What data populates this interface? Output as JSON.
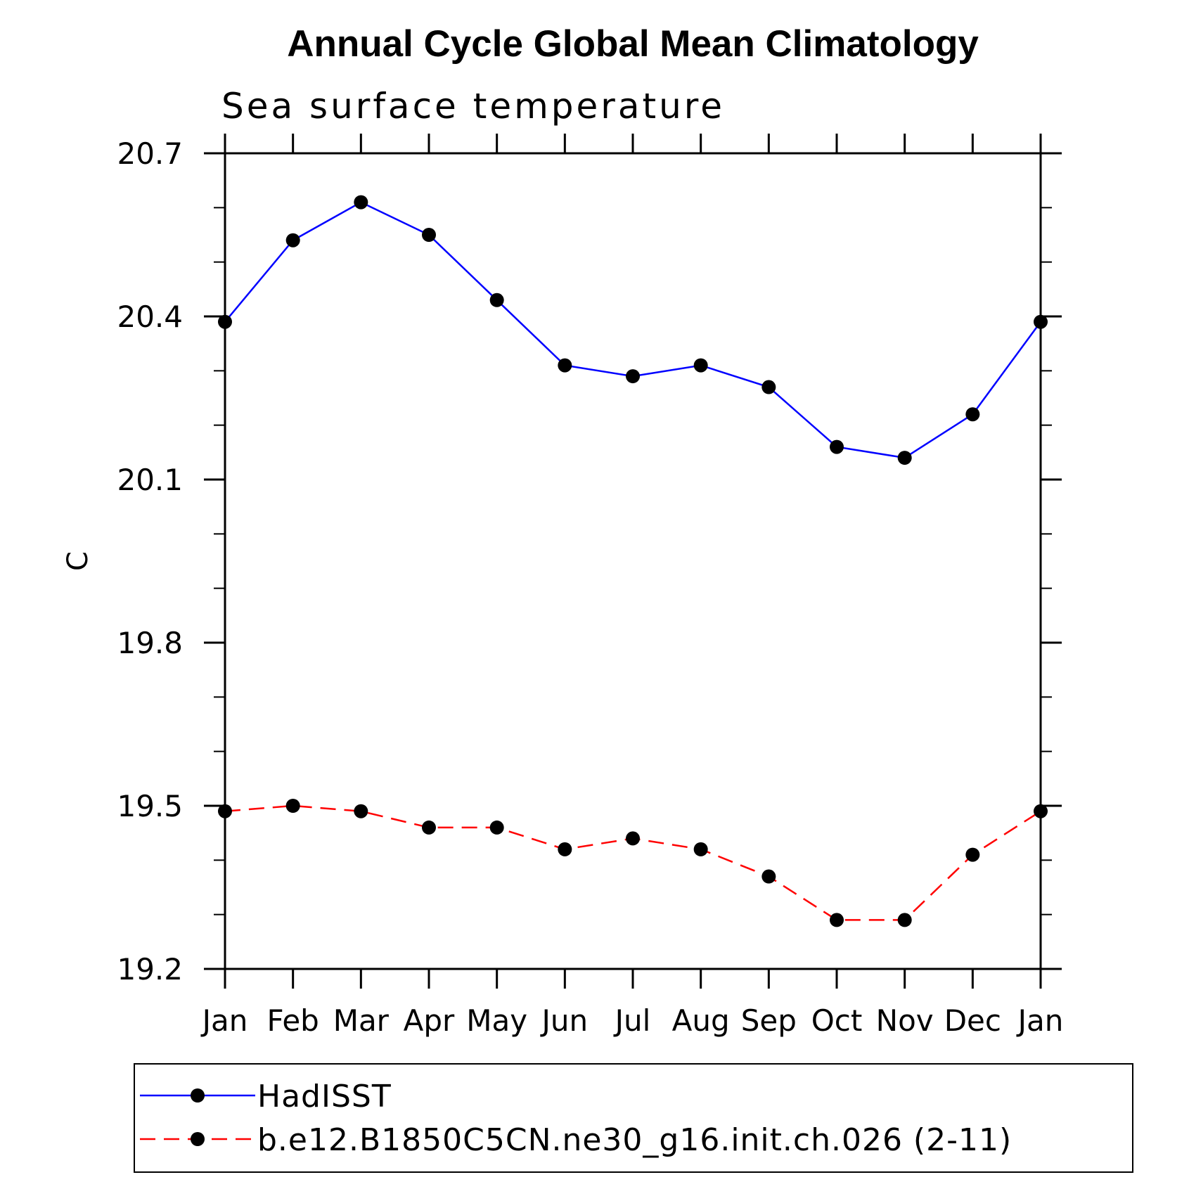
{
  "chart_data": {
    "type": "line",
    "title": "Annual Cycle Global Mean Climatology",
    "subtitle": "Sea surface temperature",
    "xlabel": "",
    "ylabel": "C",
    "categories": [
      "Jan",
      "Feb",
      "Mar",
      "Apr",
      "May",
      "Jun",
      "Jul",
      "Aug",
      "Sep",
      "Oct",
      "Nov",
      "Dec",
      "Jan"
    ],
    "ylim": [
      19.2,
      20.7
    ],
    "yticks": [
      "20.7",
      "20.4",
      "20.1",
      "19.8",
      "19.5",
      "19.2"
    ],
    "legend_position": "bottom",
    "series": [
      {
        "name": "HadISST",
        "color": "#0000ff",
        "dash": "solid",
        "marker": "filled-circle",
        "values": [
          20.39,
          20.54,
          20.61,
          20.55,
          20.43,
          20.31,
          20.29,
          20.31,
          20.27,
          20.16,
          20.14,
          20.22,
          20.39
        ]
      },
      {
        "name": "b.e12.B1850C5CN.ne30_g16.init.ch.026 (2-11)",
        "color": "#ff0000",
        "dash": "dashed",
        "marker": "filled-circle",
        "values": [
          19.49,
          19.5,
          19.49,
          19.46,
          19.46,
          19.42,
          19.44,
          19.42,
          19.37,
          19.29,
          19.29,
          19.41,
          19.49
        ]
      }
    ]
  }
}
